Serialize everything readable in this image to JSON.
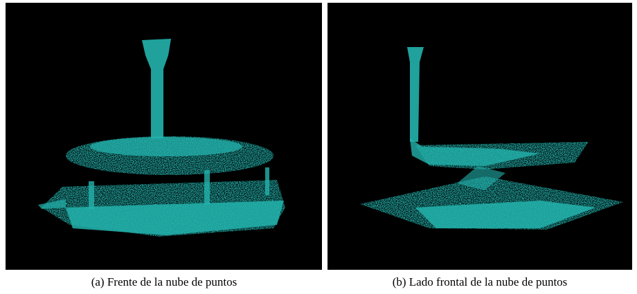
{
  "figure": {
    "panels": [
      {
        "caption": "(a) Frente de la nube de puntos"
      },
      {
        "caption": "(b) Lado frontal de la nube de puntos"
      }
    ]
  }
}
